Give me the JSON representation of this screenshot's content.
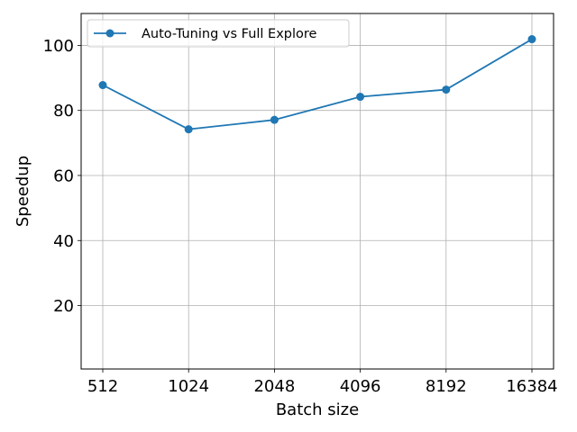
{
  "chart_data": {
    "type": "line",
    "categories": [
      "512",
      "1024",
      "2048",
      "4096",
      "8192",
      "16384"
    ],
    "series": [
      {
        "name": "Auto-Tuning vs Full Explore",
        "values": [
          87.8,
          74.2,
          77.1,
          84.2,
          86.4,
          101.9
        ],
        "color": "#1f77b4",
        "marker": "circle"
      }
    ],
    "xlabel": "Batch size",
    "ylabel": "Speedup",
    "ylim": [
      0.5,
      109.8
    ],
    "yticks": [
      20,
      40,
      60,
      80,
      100
    ],
    "grid": true,
    "legend_position": "upper-left"
  }
}
